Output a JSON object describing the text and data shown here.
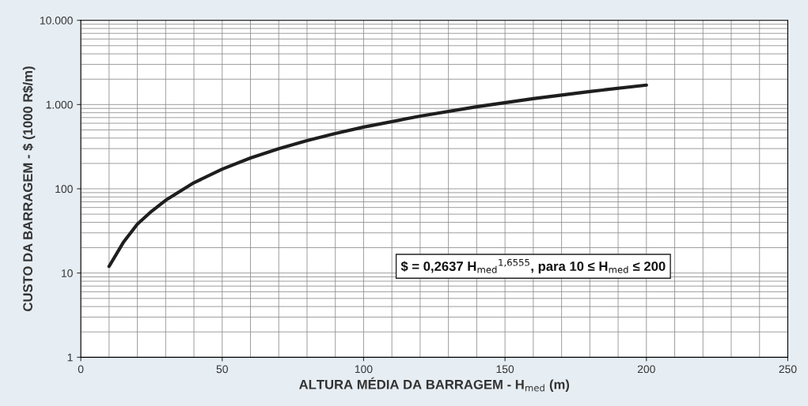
{
  "chart_data": {
    "type": "line",
    "xlabel": "ALTURA MÉDIA DA BARRAGEM - H$_{med}$ (m)",
    "ylabel": "CUSTO DA BARRAGEM - $ (1000 R$/m)",
    "x": [
      10,
      15,
      20,
      25,
      30,
      40,
      50,
      60,
      70,
      80,
      90,
      100,
      120,
      140,
      160,
      180,
      200
    ],
    "series": [
      {
        "color": "#1e1e1e",
        "values": [
          12,
          23,
          38,
          54,
          73,
          118,
          171,
          232,
          299,
          373,
          454,
          540,
          730,
          942,
          1175,
          1428,
          1700
        ]
      }
    ],
    "log": "y",
    "xlim": [
      0,
      250
    ],
    "ylim": [
      1,
      10000
    ],
    "xticks": [
      0,
      50,
      100,
      150,
      200,
      250
    ],
    "yticks": [
      1,
      10,
      100,
      {
        "value": 1000,
        "label": "1.000"
      },
      {
        "value": 10000,
        "label": "10.000"
      }
    ],
    "grid": true,
    "marker": "none",
    "line_style": "solid",
    "annotations": [
      "$ = 0,2637 H$_{med}$$^{1,6555}$, para 10 ≤ H$_{med}$ ≤ 200"
    ]
  }
}
